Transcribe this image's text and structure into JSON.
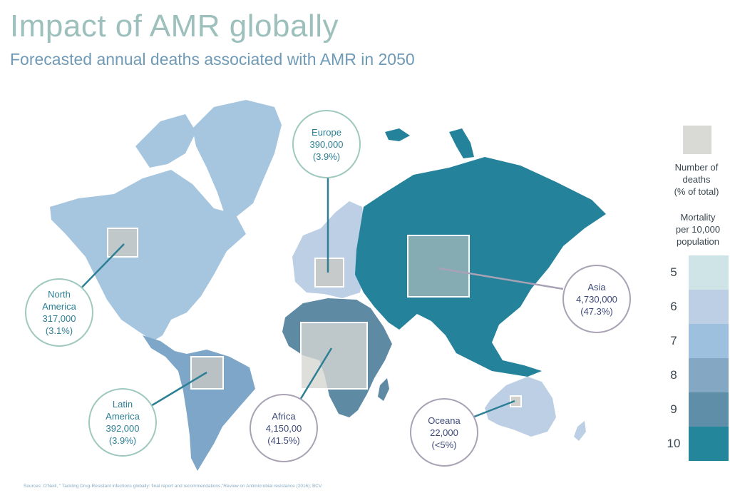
{
  "title": "Impact of AMR globally",
  "subtitle": "Forecasted annual deaths associated with AMR in 2050",
  "regions": [
    {
      "id": "north-america",
      "name_lines": [
        "North",
        "America"
      ],
      "deaths": "317,000",
      "share": "(3.1%)",
      "mortality_per_10000": 6,
      "color": "#a6c6e0"
    },
    {
      "id": "latin-america",
      "name_lines": [
        "Latin",
        "America"
      ],
      "deaths": "392,000",
      "share": "(3.9%)",
      "mortality_per_10000": 8,
      "color": "#7ea6c8"
    },
    {
      "id": "europe",
      "name_lines": [
        "Europe"
      ],
      "deaths": "390,000",
      "share": "(3.9%)",
      "mortality_per_10000": 6,
      "color": "#bccfe4"
    },
    {
      "id": "africa",
      "name_lines": [
        "Africa"
      ],
      "deaths": "4,150,00",
      "share": "(41.5%)",
      "mortality_per_10000": 9,
      "color": "#5f8aa4"
    },
    {
      "id": "asia",
      "name_lines": [
        "Asia"
      ],
      "deaths": "4,730,000",
      "share": "(47.3%)",
      "mortality_per_10000": 10,
      "color": "#24829a"
    },
    {
      "id": "oceana",
      "name_lines": [
        "Oceana"
      ],
      "deaths": "22,000",
      "share": "(<5%)",
      "mortality_per_10000": 6,
      "color": "#bccfe4"
    }
  ],
  "legend": {
    "deaths_label_lines": [
      "Number of",
      "deaths",
      "(% of total)"
    ],
    "mortality_label_lines": [
      "Mortality",
      "per 10,000",
      "population"
    ],
    "scale": [
      {
        "value": "5",
        "color": "#cfe4e6"
      },
      {
        "value": "6",
        "color": "#bccfe4"
      },
      {
        "value": "7",
        "color": "#9cc0de"
      },
      {
        "value": "8",
        "color": "#84a8c4"
      },
      {
        "value": "9",
        "color": "#5f8ea8"
      },
      {
        "value": "10",
        "color": "#24869a"
      }
    ]
  },
  "sources": "Sources: O'Neill, \" Tackling Drug-Resistant infections globally: final report and recommendations,\"Review on Antimicrobial resistance (2016); BCV"
}
